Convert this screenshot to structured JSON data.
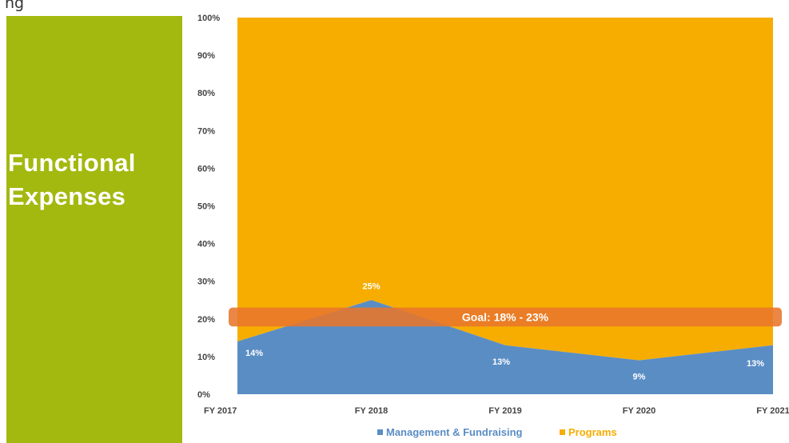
{
  "header": {
    "fragment": "ng"
  },
  "sidebar": {
    "title_line1": "Functional",
    "title_line2": "Expenses"
  },
  "colors": {
    "sidebar": "#a3b90f",
    "management": "#5a8dc4",
    "programs": "#f6ad00",
    "goal_band": "#e8762a"
  },
  "chart_data": {
    "type": "area",
    "stacked": true,
    "percent": true,
    "categories": [
      "FY 2017",
      "FY 2018",
      "FY 2019",
      "FY 2020",
      "FY 2021"
    ],
    "series": [
      {
        "name": "Management & Fundraising",
        "values": [
          14,
          25,
          13,
          9,
          13
        ],
        "labels": [
          "14%",
          "25%",
          "13%",
          "9%",
          "13%"
        ],
        "color": "#5a8dc4"
      },
      {
        "name": "Programs",
        "values": [
          86,
          75,
          87,
          91,
          87
        ],
        "color": "#f6ad00"
      }
    ],
    "ylim": [
      0,
      100
    ],
    "yticks": [
      "0%",
      "10%",
      "20%",
      "30%",
      "40%",
      "50%",
      "60%",
      "70%",
      "80%",
      "90%",
      "100%"
    ],
    "goal_band": {
      "label": "Goal: 18% - 23%",
      "range": [
        18,
        23
      ],
      "color": "#e8762a"
    },
    "legend": {
      "position": "bottom"
    }
  }
}
